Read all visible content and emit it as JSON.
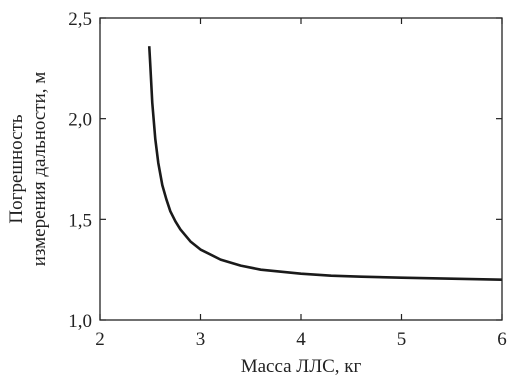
{
  "chart_data": {
    "type": "line",
    "title": "",
    "xlabel": "Масса ЛЛС, кг",
    "ylabel_lines": [
      "Погрешность",
      "измерения дальности, м"
    ],
    "xlim": [
      2,
      6
    ],
    "ylim": [
      1.0,
      2.5
    ],
    "x_ticks": [
      {
        "value": 2,
        "label": "2"
      },
      {
        "value": 3,
        "label": "3"
      },
      {
        "value": 4,
        "label": "4"
      },
      {
        "value": 5,
        "label": "5"
      },
      {
        "value": 6,
        "label": "6"
      }
    ],
    "y_ticks": [
      {
        "value": 1.0,
        "label": "1,0"
      },
      {
        "value": 1.5,
        "label": "1,5"
      },
      {
        "value": 2.0,
        "label": "2,0"
      },
      {
        "value": 2.5,
        "label": "2,5"
      }
    ],
    "grid": false,
    "line_color": "#1a1a1a",
    "series": [
      {
        "x": [
          2.49,
          2.5,
          2.52,
          2.55,
          2.58,
          2.62,
          2.66,
          2.7,
          2.75,
          2.8,
          2.9,
          3.0,
          3.2,
          3.4,
          3.6,
          3.8,
          4.0,
          4.3,
          4.6,
          5.0,
          5.5,
          6.0
        ],
        "y": [
          2.36,
          2.27,
          2.08,
          1.9,
          1.78,
          1.67,
          1.6,
          1.54,
          1.49,
          1.45,
          1.39,
          1.35,
          1.3,
          1.27,
          1.25,
          1.24,
          1.23,
          1.22,
          1.215,
          1.21,
          1.205,
          1.2
        ]
      }
    ]
  }
}
